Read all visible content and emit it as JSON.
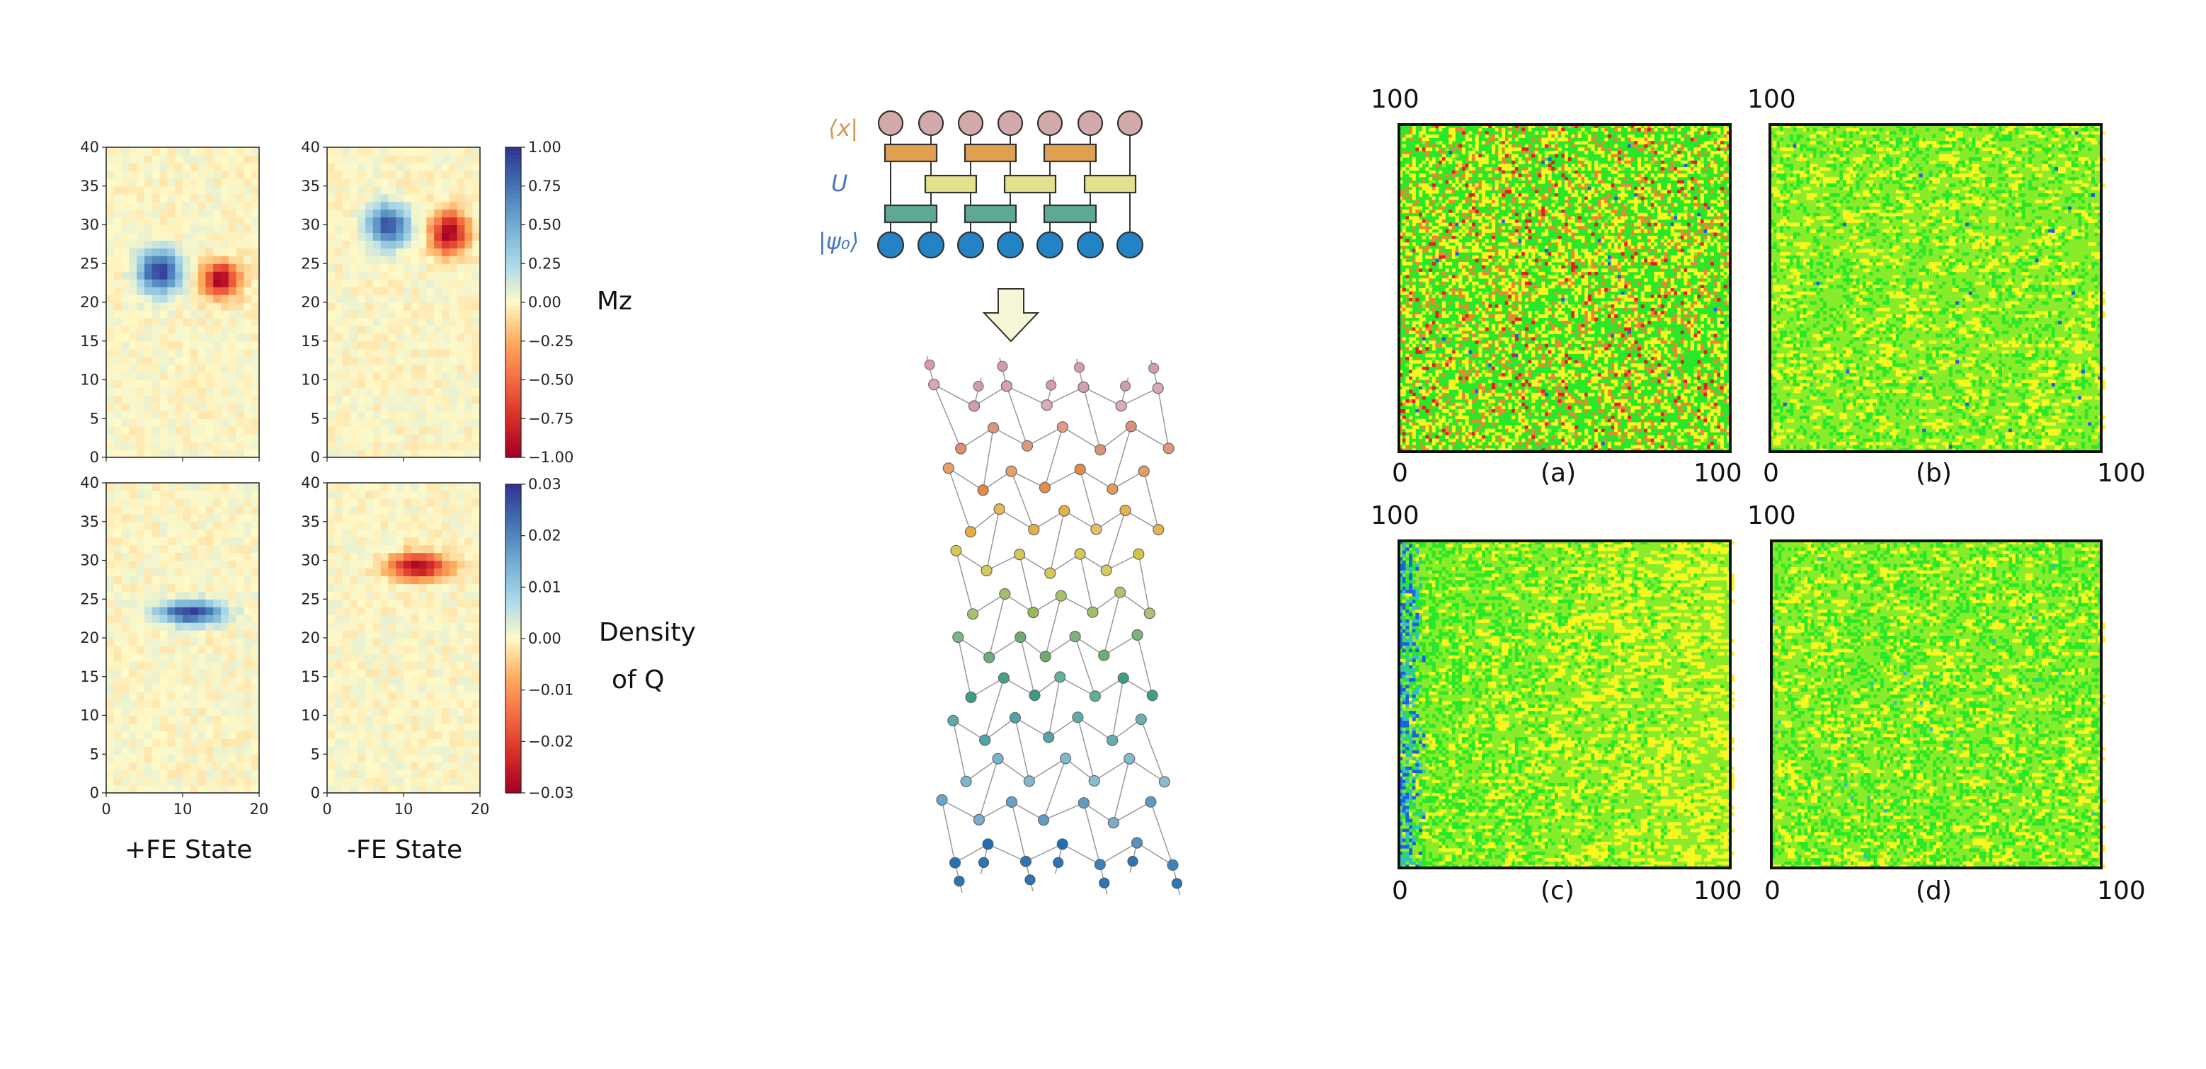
{
  "maps": {
    "x_ticks": [
      "0",
      "10",
      "20"
    ],
    "y_ticks": [
      "0",
      "5",
      "10",
      "15",
      "20",
      "25",
      "30",
      "35",
      "40"
    ],
    "mz_ticks": [
      "1.00",
      "0.75",
      "0.50",
      "0.25",
      "0.00",
      "−0.25",
      "−0.50",
      "−0.75",
      "−1.00"
    ],
    "q_ticks": [
      "0.03",
      "0.02",
      "0.01",
      "0.00",
      "−0.01",
      "−0.02",
      "−0.03"
    ],
    "mz_label": "Mz",
    "q_label_line1": "Density",
    "q_label_line2": "of Q",
    "col_labels": [
      "+FE State",
      "-FE State"
    ],
    "colormap": "RdYlBu",
    "mz_range": [
      -1.0,
      1.0
    ],
    "q_range": [
      -0.03,
      0.03
    ]
  },
  "circuit": {
    "top_label": "⟨x|",
    "mid_label": "U",
    "bottom_label": "|ψ₀⟩",
    "qubits": 7,
    "colors": {
      "top_node": "#d4a9a9",
      "gate_orange": "#e0a050",
      "gate_yellow": "#e3e090",
      "gate_teal": "#5fa896",
      "bottom_node": "#2383c4"
    }
  },
  "grids": {
    "axis_zero": "0",
    "axis_max": "100",
    "panels": [
      {
        "label": "(a)"
      },
      {
        "label": "(b)"
      },
      {
        "label": "(c)"
      },
      {
        "label": "(d)"
      }
    ],
    "colors": {
      "green": "#29e829",
      "lightgreen": "#88ec2a",
      "yellow": "#f8f820",
      "orange": "#e58a30",
      "red": "#e42020",
      "blue": "#2060e0",
      "cyan": "#30c0c0"
    }
  }
}
